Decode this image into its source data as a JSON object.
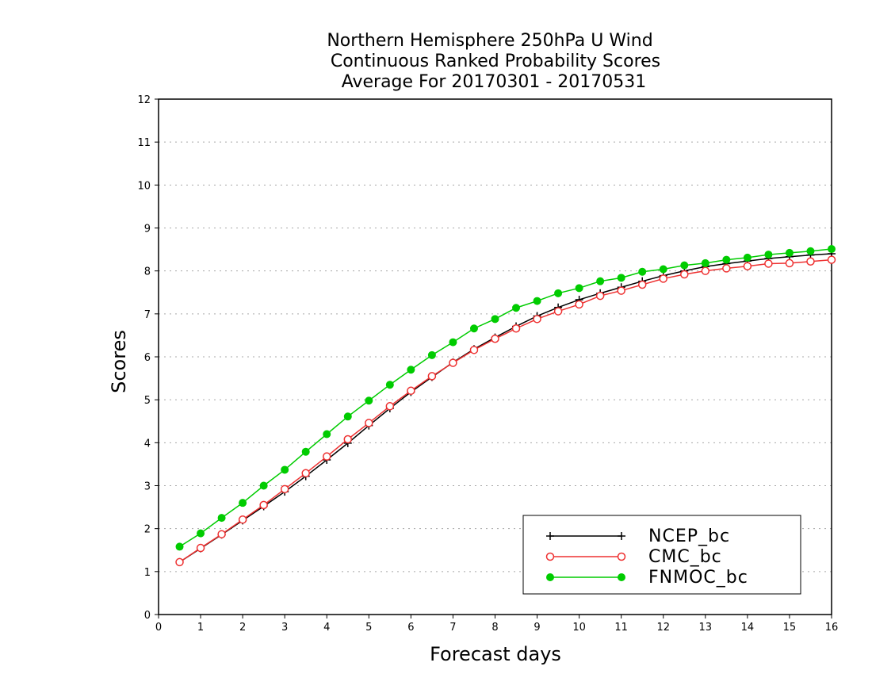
{
  "chart_data": {
    "type": "line",
    "title_lines": [
      "Northern Hemisphere 250hPa U Wind",
      "Continuous Ranked Probability Scores",
      "Average For 20170301 - 20170531"
    ],
    "xlabel": "Forecast days",
    "ylabel": "Scores",
    "xlim": [
      0,
      16
    ],
    "ylim": [
      0,
      12
    ],
    "x_ticks": [
      "0",
      "1",
      "2",
      "3",
      "4",
      "5",
      "6",
      "7",
      "8",
      "9",
      "10",
      "11",
      "12",
      "13",
      "14",
      "15",
      "16"
    ],
    "y_ticks": [
      "0",
      "1",
      "2",
      "3",
      "4",
      "5",
      "6",
      "7",
      "8",
      "9",
      "10",
      "11",
      "12"
    ],
    "grid": "horizontal dotted",
    "legend_position": "bottom-right",
    "x": [
      0.5,
      1,
      1.5,
      2,
      2.5,
      3,
      3.5,
      4,
      4.5,
      5,
      5.5,
      6,
      6.5,
      7,
      7.5,
      8,
      8.5,
      9,
      9.5,
      10,
      10.5,
      11,
      11.5,
      12,
      12.5,
      13,
      13.5,
      14,
      14.5,
      15,
      15.5,
      16
    ],
    "series": [
      {
        "name": "NCEP_bc",
        "color": "#000000",
        "marker": "plus",
        "values": [
          1.22,
          1.54,
          1.86,
          2.19,
          2.52,
          2.86,
          3.22,
          3.6,
          3.99,
          4.4,
          4.8,
          5.18,
          5.53,
          5.87,
          6.18,
          6.45,
          6.71,
          6.95,
          7.15,
          7.33,
          7.48,
          7.62,
          7.76,
          7.89,
          8.0,
          8.1,
          8.17,
          8.23,
          8.29,
          8.33,
          8.37,
          8.4
        ]
      },
      {
        "name": "CMC_bc",
        "color": "#ee3030",
        "marker": "open-circle",
        "values": [
          1.22,
          1.55,
          1.87,
          2.21,
          2.55,
          2.92,
          3.29,
          3.68,
          4.08,
          4.46,
          4.85,
          5.21,
          5.55,
          5.86,
          6.16,
          6.42,
          6.66,
          6.88,
          7.06,
          7.22,
          7.42,
          7.54,
          7.68,
          7.82,
          7.92,
          8.0,
          8.06,
          8.11,
          8.17,
          8.18,
          8.22,
          8.26
        ]
      },
      {
        "name": "FNMOC_bc",
        "color": "#00cc00",
        "marker": "filled-circle",
        "values": [
          1.58,
          1.89,
          2.25,
          2.6,
          3.0,
          3.37,
          3.79,
          4.2,
          4.61,
          4.98,
          5.35,
          5.7,
          6.04,
          6.34,
          6.66,
          6.88,
          7.14,
          7.3,
          7.48,
          7.6,
          7.76,
          7.84,
          7.98,
          8.04,
          8.13,
          8.18,
          8.26,
          8.31,
          8.38,
          8.42,
          8.46,
          8.51
        ]
      }
    ]
  }
}
